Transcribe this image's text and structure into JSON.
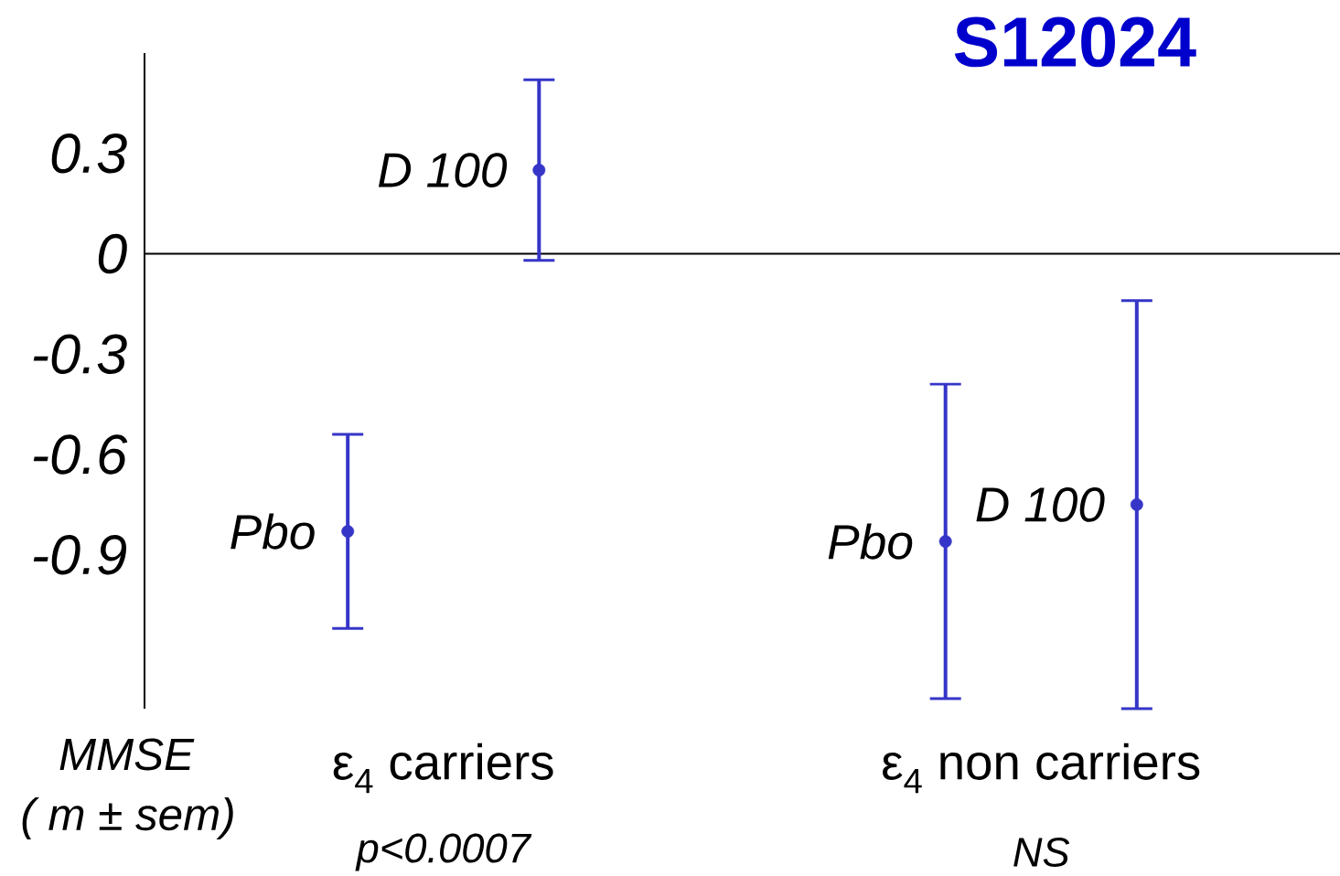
{
  "chart_data": {
    "type": "scatter",
    "title": "S12024",
    "ylabel": "MMSE",
    "categories": [
      "ε$_{4}$ carriers",
      "ε$_{4}$ non carriers"
    ],
    "series": [
      {
        "name": "Pbo",
        "color": "#3535c8",
        "values": [
          -0.83,
          -0.86
        ],
        "errors": [
          0.29,
          0.47
        ]
      },
      {
        "name": "D 100",
        "color": "#3535c8",
        "values": [
          0.25,
          -0.75
        ],
        "errors": [
          0.27,
          0.61
        ]
      }
    ],
    "ylim": [
      -1.36,
      0.6
    ],
    "yticks": [
      0.3,
      0,
      -0.3,
      -0.6,
      -0.9
    ],
    "marker": "circle",
    "annotations": [
      "( m ± sem)",
      "p<0.0007",
      "NS"
    ]
  }
}
